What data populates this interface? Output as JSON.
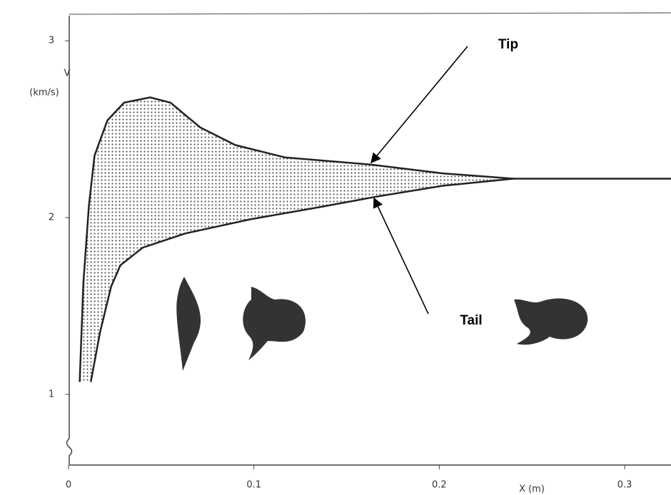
{
  "chart_data": {
    "type": "line",
    "x_label": "X (m)",
    "y_label": [
      "V",
      "(km/s)"
    ],
    "xlim": [
      0,
      0.325
    ],
    "xticks": [
      0,
      0.1,
      0.2,
      0.3
    ],
    "ylim": [
      0.6,
      3.15
    ],
    "yticks": [
      1,
      2,
      3
    ],
    "grid": false,
    "series": [
      {
        "name": "Tip",
        "color": "#222222",
        "x": [
          0.006,
          0.008,
          0.011,
          0.014,
          0.021,
          0.03,
          0.044,
          0.055,
          0.071,
          0.09,
          0.117,
          0.163,
          0.202,
          0.24,
          0.325
        ],
        "values": [
          1.07,
          1.63,
          2.07,
          2.35,
          2.55,
          2.65,
          2.68,
          2.65,
          2.51,
          2.41,
          2.34,
          2.3,
          2.25,
          2.22,
          2.22
        ]
      },
      {
        "name": "Tail",
        "color": "#222222",
        "x": [
          0.012,
          0.017,
          0.023,
          0.028,
          0.04,
          0.063,
          0.098,
          0.136,
          0.167,
          0.202,
          0.24
        ],
        "values": [
          1.07,
          1.35,
          1.61,
          1.73,
          1.83,
          1.91,
          1.99,
          2.06,
          2.12,
          2.18,
          2.22
        ]
      }
    ]
  }
}
